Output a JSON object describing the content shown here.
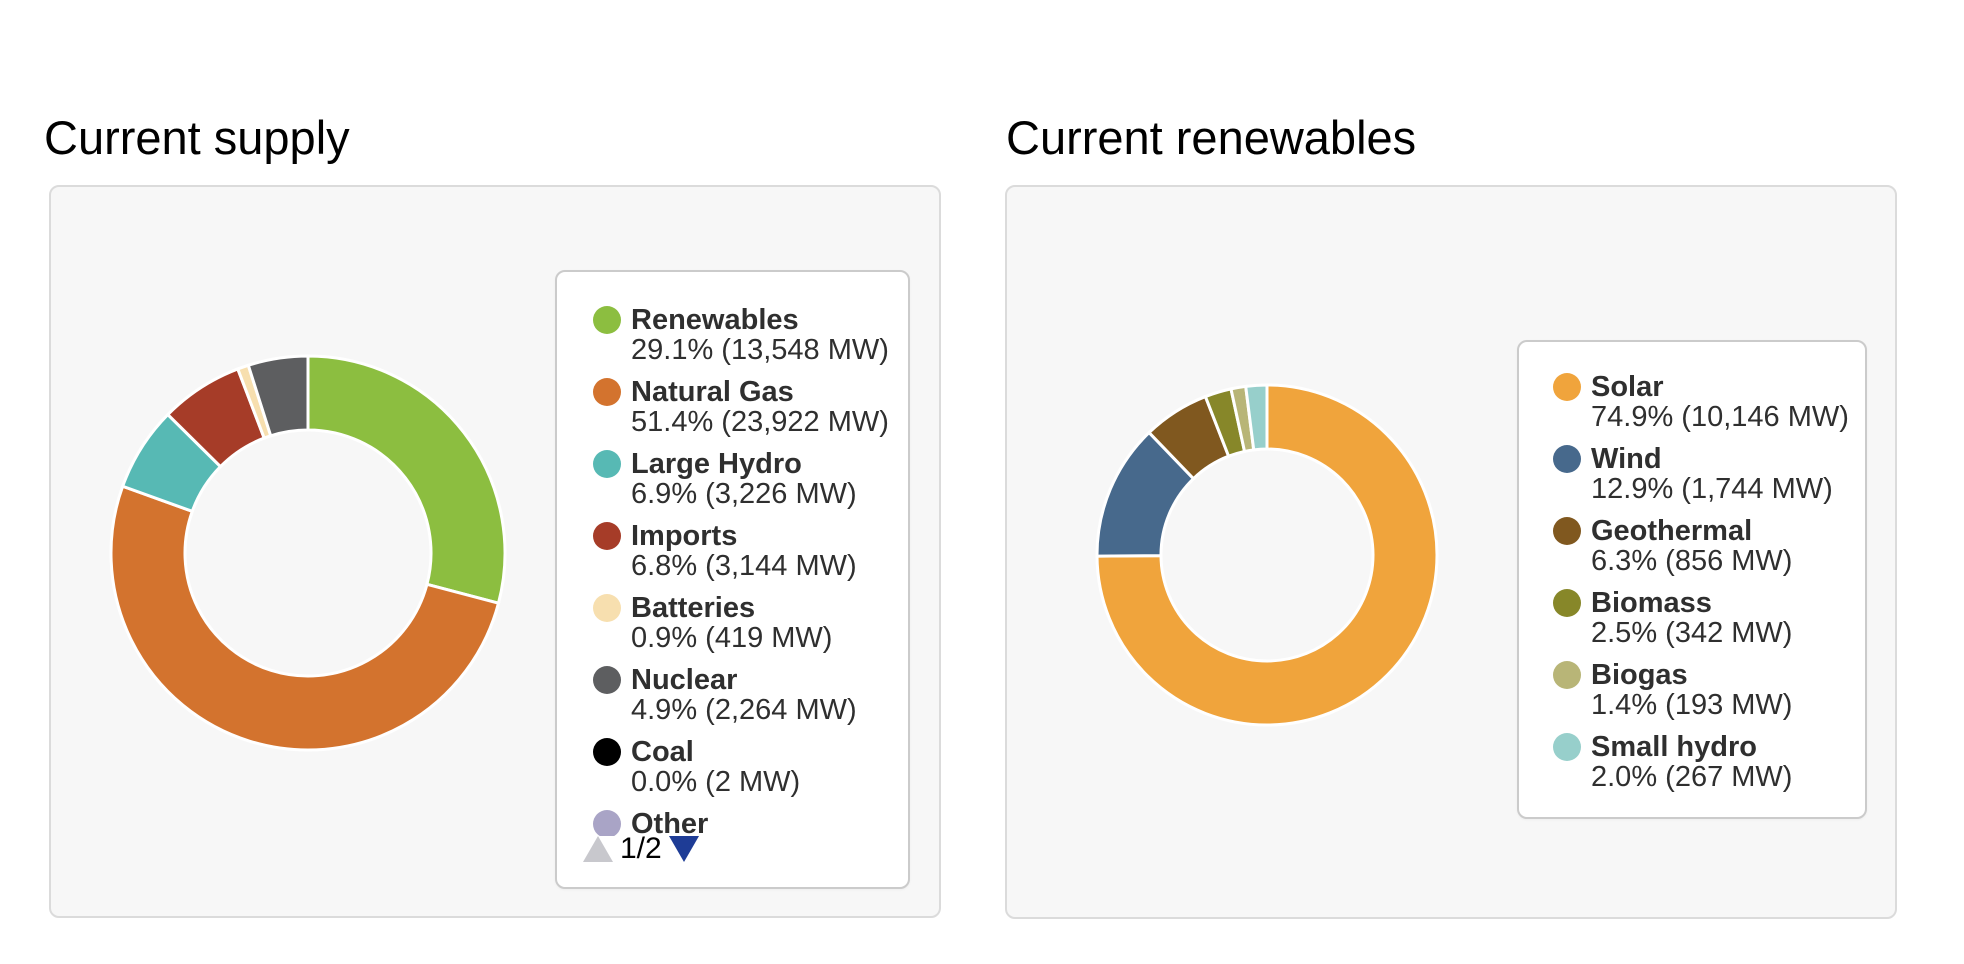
{
  "cards": [
    {
      "title": "Current supply",
      "legend": {
        "pagination": {
          "label": "1/2",
          "up_arrow_state": "disabled",
          "down_arrow_state": "enabled"
        }
      }
    },
    {
      "title": "Current renewables",
      "legend": {
        "pagination": null
      }
    }
  ],
  "colors": {
    "card_background": "#F7F7F7",
    "card_border": "#DBDBDB",
    "legend_border": "#CBCBCB",
    "slice_gap": "#FFFFFF",
    "pagination_up_gray": "#C8C8CD",
    "pagination_down_blue": "#1E3C96",
    "legend_text": "#2F2F2F"
  },
  "chart_data": [
    {
      "type": "pie",
      "subtype": "donut",
      "title": "Current supply",
      "unit": "MW",
      "legend_position": "right",
      "legend_page": "1/2",
      "series": [
        {
          "label": "Renewables",
          "percent": 29.1,
          "mw": 13548,
          "value_text": "29.1% (13,548 MW)",
          "color": "#8CBE40"
        },
        {
          "label": "Natural Gas",
          "percent": 51.4,
          "mw": 23922,
          "value_text": "51.4% (23,922 MW)",
          "color": "#D3732E"
        },
        {
          "label": "Large Hydro",
          "percent": 6.9,
          "mw": 3226,
          "value_text": "6.9% (3,226 MW)",
          "color": "#57B9B4"
        },
        {
          "label": "Imports",
          "percent": 6.8,
          "mw": 3144,
          "value_text": "6.8% (3,144 MW)",
          "color": "#A63C28"
        },
        {
          "label": "Batteries",
          "percent": 0.9,
          "mw": 419,
          "value_text": "0.9% (419 MW)",
          "color": "#F7DFAF"
        },
        {
          "label": "Nuclear",
          "percent": 4.9,
          "mw": 2264,
          "value_text": "4.9% (2,264 MW)",
          "color": "#5D5E60"
        },
        {
          "label": "Coal",
          "percent": 0.0,
          "mw": 2,
          "value_text": "0.0% (2 MW)",
          "color": "#000000"
        },
        {
          "label": "Other",
          "percent": 0.0,
          "value_text": "",
          "color": "#A9A4C6",
          "clipped": true
        }
      ]
    },
    {
      "type": "pie",
      "subtype": "donut",
      "title": "Current renewables",
      "unit": "MW",
      "legend_position": "right",
      "series": [
        {
          "label": "Solar",
          "percent": 74.9,
          "mw": 10146,
          "value_text": "74.9% (10,146 MW)",
          "color": "#F0A43C"
        },
        {
          "label": "Wind",
          "percent": 12.9,
          "mw": 1744,
          "value_text": "12.9% (1,744 MW)",
          "color": "#47698C"
        },
        {
          "label": "Geothermal",
          "percent": 6.3,
          "mw": 856,
          "value_text": "6.3% (856 MW)",
          "color": "#80581F"
        },
        {
          "label": "Biomass",
          "percent": 2.5,
          "mw": 342,
          "value_text": "2.5% (342 MW)",
          "color": "#878729"
        },
        {
          "label": "Biogas",
          "percent": 1.4,
          "mw": 193,
          "value_text": "1.4% (193 MW)",
          "color": "#B8B577"
        },
        {
          "label": "Small hydro",
          "percent": 2.0,
          "mw": 267,
          "value_text": "2.0% (267 MW)",
          "color": "#97CFCB"
        }
      ]
    }
  ]
}
